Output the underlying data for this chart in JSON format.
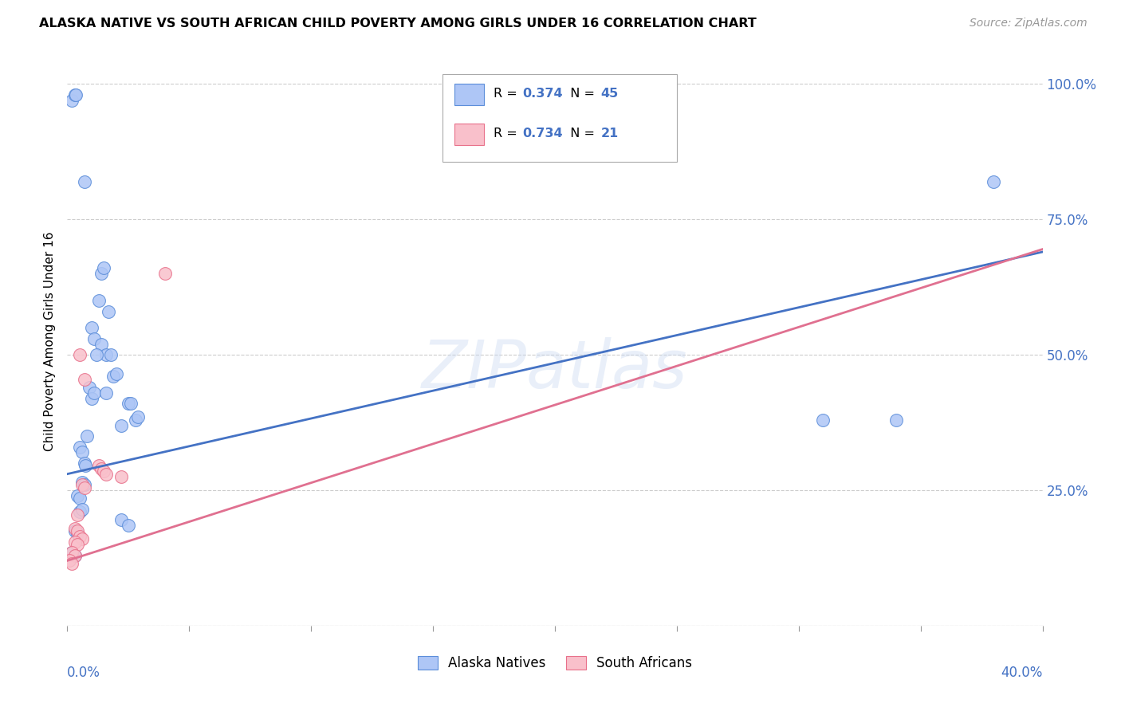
{
  "title": "ALASKA NATIVE VS SOUTH AFRICAN CHILD POVERTY AMONG GIRLS UNDER 16 CORRELATION CHART",
  "source": "Source: ZipAtlas.com",
  "ylabel": "Child Poverty Among Girls Under 16",
  "legend_label_blue": "Alaska Natives",
  "legend_label_pink": "South Africans",
  "watermark": "ZIPatlas",
  "blue_fill": "#aec6f6",
  "pink_fill": "#f9c0cb",
  "blue_edge": "#5b8dd9",
  "pink_edge": "#e8708a",
  "line_blue": "#4472c4",
  "line_pink": "#e07090",
  "blue_scatter": [
    [
      0.002,
      0.97
    ],
    [
      0.003,
      0.98
    ],
    [
      0.0035,
      0.98
    ],
    [
      0.007,
      0.82
    ],
    [
      0.014,
      0.65
    ],
    [
      0.015,
      0.66
    ],
    [
      0.013,
      0.6
    ],
    [
      0.017,
      0.58
    ],
    [
      0.01,
      0.55
    ],
    [
      0.011,
      0.53
    ],
    [
      0.014,
      0.52
    ],
    [
      0.016,
      0.5
    ],
    [
      0.018,
      0.5
    ],
    [
      0.012,
      0.5
    ],
    [
      0.019,
      0.46
    ],
    [
      0.02,
      0.465
    ],
    [
      0.009,
      0.44
    ],
    [
      0.01,
      0.42
    ],
    [
      0.011,
      0.43
    ],
    [
      0.016,
      0.43
    ],
    [
      0.025,
      0.41
    ],
    [
      0.026,
      0.41
    ],
    [
      0.028,
      0.38
    ],
    [
      0.029,
      0.385
    ],
    [
      0.022,
      0.37
    ],
    [
      0.008,
      0.35
    ],
    [
      0.005,
      0.33
    ],
    [
      0.006,
      0.32
    ],
    [
      0.007,
      0.3
    ],
    [
      0.0075,
      0.295
    ],
    [
      0.006,
      0.265
    ],
    [
      0.007,
      0.26
    ],
    [
      0.004,
      0.24
    ],
    [
      0.005,
      0.235
    ],
    [
      0.005,
      0.21
    ],
    [
      0.006,
      0.215
    ],
    [
      0.022,
      0.195
    ],
    [
      0.025,
      0.185
    ],
    [
      0.003,
      0.175
    ],
    [
      0.004,
      0.17
    ],
    [
      0.002,
      0.135
    ],
    [
      0.003,
      0.13
    ],
    [
      0.38,
      0.82
    ],
    [
      0.31,
      0.38
    ],
    [
      0.34,
      0.38
    ]
  ],
  "pink_scatter": [
    [
      0.005,
      0.5
    ],
    [
      0.007,
      0.455
    ],
    [
      0.013,
      0.295
    ],
    [
      0.014,
      0.29
    ],
    [
      0.015,
      0.285
    ],
    [
      0.016,
      0.28
    ],
    [
      0.022,
      0.275
    ],
    [
      0.006,
      0.26
    ],
    [
      0.007,
      0.255
    ],
    [
      0.004,
      0.205
    ],
    [
      0.003,
      0.18
    ],
    [
      0.004,
      0.175
    ],
    [
      0.005,
      0.165
    ],
    [
      0.006,
      0.16
    ],
    [
      0.003,
      0.155
    ],
    [
      0.004,
      0.15
    ],
    [
      0.002,
      0.135
    ],
    [
      0.003,
      0.13
    ],
    [
      0.001,
      0.12
    ],
    [
      0.002,
      0.115
    ],
    [
      0.04,
      0.65
    ]
  ],
  "blue_line_x": [
    0.0,
    0.4
  ],
  "blue_line_y": [
    0.28,
    0.69
  ],
  "pink_line_x": [
    0.0,
    0.4
  ],
  "pink_line_y": [
    0.12,
    0.695
  ],
  "xlim": [
    0.0,
    0.4
  ],
  "ylim": [
    0.0,
    1.05
  ],
  "ytick_vals": [
    0.0,
    0.25,
    0.5,
    0.75,
    1.0
  ],
  "ytick_labels": [
    "",
    "25.0%",
    "50.0%",
    "75.0%",
    "100.0%"
  ],
  "R_blue": "0.374",
  "N_blue": "45",
  "R_pink": "0.734",
  "N_pink": "21"
}
